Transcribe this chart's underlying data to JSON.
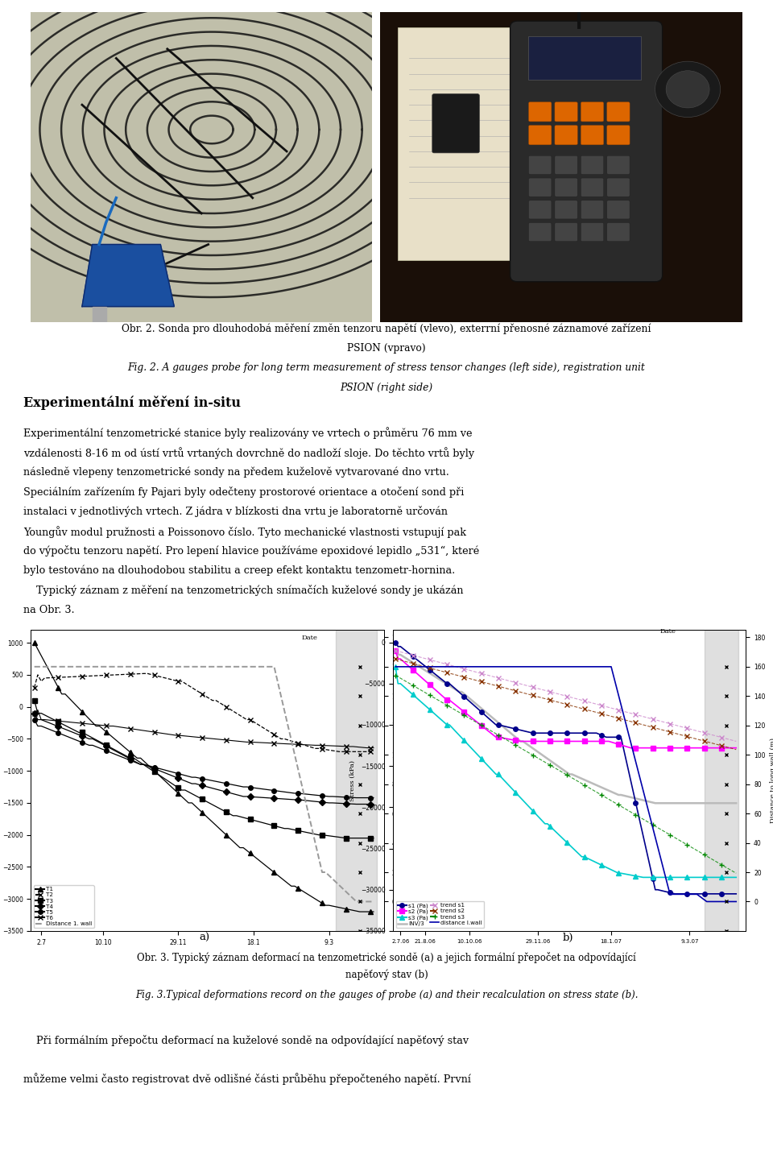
{
  "title_czech_line1": "Obr. 2. Sonda pro dlouhodobá měření změn tenzoru napětí (vlevo), exterrní přenosné záznamové zařízení",
  "title_czech_line2": "PSION (vpravo)",
  "title_english_line1": "Fig. 2. A gauges probe for long term measurement of stress tensor changes (left side), registration unit",
  "title_english_line2": "PSION (right side)",
  "section_title": "Experimentální měření in-situ",
  "para_lines": [
    "Experimentální tenzometrické stanice byly realizovány ve vrtech o průměru 76 mm ve",
    "vzdálenosti 8-16 m od ústí vrtů vrtaných dovrchně do nadloží sloje. Do těchto vrtů byly",
    "následně vlepeny tenzometrické sondy na předem kuželově vytvarované dno vrtu.",
    "Speciálním zařízením fy Pajari byly odečteny prostorové orientace a otočení sond při",
    "instalaci v jednotlivých vrtech. Z jádra v blízkosti dna vrtu je laboratorně určován",
    "Youngův modul pružnosti a Poissonovo číslo. Tyto mechanické vlastnosti vstupují pak",
    "do výpočtu tenzoru napětí. Pro lepení hlavice používáme epoxidové lepidlo „531“, které",
    "bylo testováno na dlouhodobou stabilitu a creep efekt kontaktu tenzometr-hornina.",
    "    Typický záznam z měření na tenzometrických snímačích kuželové sondy je ukázán",
    "na Obr. 3."
  ],
  "fig3_caption_czech_1": "Obr. 3. Typický záznam deformací na tenzometrické sondě (a) a jejich formální přepočet na odpovídající",
  "fig3_caption_czech_2": "napěťový stav (b)",
  "fig3_caption_eng": "Fig. 3.Typical deformations record on the gauges of probe (a) and their recalculation on stress state (b).",
  "last_para_1": "    Při formálním přepočtu deformací na kuželové sondě na odpovídající napěťový stav",
  "last_para_2": "můžeme velmi často registrovat dvě odlišné části průběhu přepočteného napětí. První",
  "bg_color": "#ffffff",
  "photo_left_bg": "#b8b8a0",
  "photo_right_bg": "#2a1e14",
  "photo_border": "#888888"
}
